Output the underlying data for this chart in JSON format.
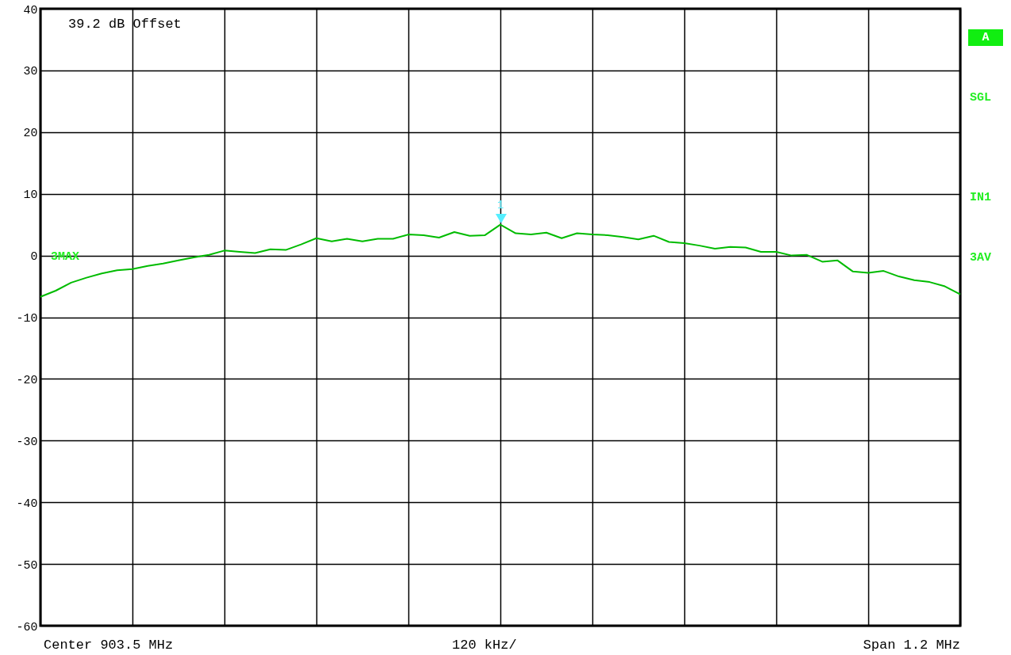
{
  "chart_data": {
    "type": "line",
    "categories": [
      null,
      null,
      null,
      null,
      null,
      null,
      null,
      null,
      null,
      null,
      null,
      null,
      null,
      null,
      null,
      null,
      null,
      null,
      null,
      null,
      null,
      null,
      null,
      null,
      null,
      null,
      null,
      null,
      null,
      null,
      null,
      null,
      null,
      null,
      null,
      null,
      null,
      null,
      null,
      null,
      null,
      null,
      null,
      null,
      null,
      null,
      null,
      null,
      null,
      null,
      null,
      null,
      null,
      null,
      null,
      null,
      null,
      null,
      null,
      null,
      null
    ],
    "ylim": [
      -60,
      40
    ],
    "yticks": [
      -60,
      -50,
      -40,
      -30,
      -20,
      -10,
      0,
      10,
      20,
      30,
      40
    ],
    "grid": true,
    "tick_labels": "y",
    "line_style": "solid",
    "series": [
      {
        "color": "#00bb00",
        "values": [
          -6.7,
          -5.7,
          -4.4,
          -3.6,
          -2.9,
          -2.4,
          -2.2,
          -1.7,
          -1.3,
          -0.8,
          -0.3,
          0.1,
          0.8,
          0.6,
          0.4,
          1.0,
          0.9,
          1.8,
          2.8,
          2.3,
          2.7,
          2.3,
          2.7,
          2.7,
          3.4,
          3.3,
          2.9,
          3.8,
          3.2,
          3.3,
          5.0,
          3.6,
          3.4,
          3.7,
          2.8,
          3.6,
          3.4,
          3.3,
          3.0,
          2.6,
          3.2,
          2.2,
          2.0,
          1.6,
          1.1,
          1.4,
          1.3,
          0.6,
          0.6,
          0.0,
          0.1,
          -1.0,
          -0.8,
          -2.6,
          -2.8,
          -2.5,
          -3.4,
          -4.0,
          -4.3,
          -5.0,
          -6.3
        ]
      }
    ],
    "annotations": [
      "39.2 dB Offset",
      "3MAX",
      "A",
      "SGL",
      "IN1",
      "3AV",
      "Center 903.5 MHz",
      "120 kHz/",
      "Span 1.2 MHz",
      "1"
    ]
  }
}
